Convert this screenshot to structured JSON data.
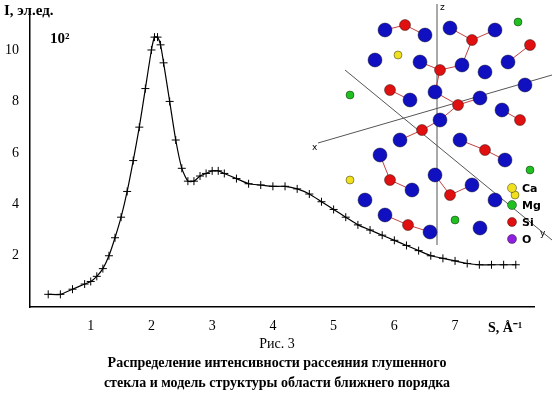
{
  "chart_data": {
    "type": "line",
    "y_label": "I, эл.ед.",
    "y_multiplier": "10²",
    "x_label": "S, Å⁻¹",
    "x": [
      0.3,
      0.5,
      0.7,
      0.9,
      1.0,
      1.1,
      1.2,
      1.3,
      1.4,
      1.5,
      1.6,
      1.7,
      1.8,
      1.9,
      2.0,
      2.05,
      2.1,
      2.15,
      2.2,
      2.3,
      2.4,
      2.5,
      2.6,
      2.7,
      2.8,
      2.9,
      3.0,
      3.1,
      3.2,
      3.4,
      3.6,
      3.8,
      4.0,
      4.2,
      4.4,
      4.6,
      4.8,
      5.0,
      5.2,
      5.4,
      5.6,
      5.8,
      6.0,
      6.2,
      6.4,
      6.6,
      6.8,
      7.0,
      7.2,
      7.4,
      7.6,
      7.8,
      8.0
    ],
    "values": [
      0.5,
      0.5,
      0.7,
      0.9,
      1.0,
      1.2,
      1.5,
      2.0,
      2.7,
      3.5,
      4.5,
      5.7,
      7.0,
      8.5,
      10.0,
      10.5,
      10.5,
      10.2,
      9.5,
      8.0,
      6.5,
      5.4,
      4.9,
      4.9,
      5.1,
      5.2,
      5.3,
      5.3,
      5.2,
      5.0,
      4.8,
      4.75,
      4.7,
      4.7,
      4.6,
      4.4,
      4.1,
      3.8,
      3.5,
      3.2,
      3.0,
      2.8,
      2.6,
      2.4,
      2.2,
      2.0,
      1.9,
      1.8,
      1.7,
      1.65,
      1.65,
      1.65,
      1.65
    ],
    "color": "#000000",
    "marker": "cross",
    "line_style": "solid",
    "xlim": [
      0,
      8.3
    ],
    "xticks": [
      1,
      2,
      3,
      4,
      5,
      6,
      7
    ],
    "ylim": [
      0,
      11.5
    ],
    "yticks": [
      2,
      4,
      6,
      8,
      10
    ],
    "grid": false
  },
  "caption": {
    "figure": "Рис. 3",
    "text": [
      "Распределение интенсивности рассеяния  глушенного",
      "стекла  и модель структуры области ближнего  порядка"
    ]
  },
  "inset": {
    "axes": [
      "x",
      "y",
      "z"
    ],
    "legend": [
      {
        "label": "Ca",
        "color": "#f0e020"
      },
      {
        "label": "Mg",
        "color": "#20c020"
      },
      {
        "label": "Si",
        "color": "#e01010"
      },
      {
        "label": "O",
        "color": "#9020e0"
      }
    ]
  }
}
